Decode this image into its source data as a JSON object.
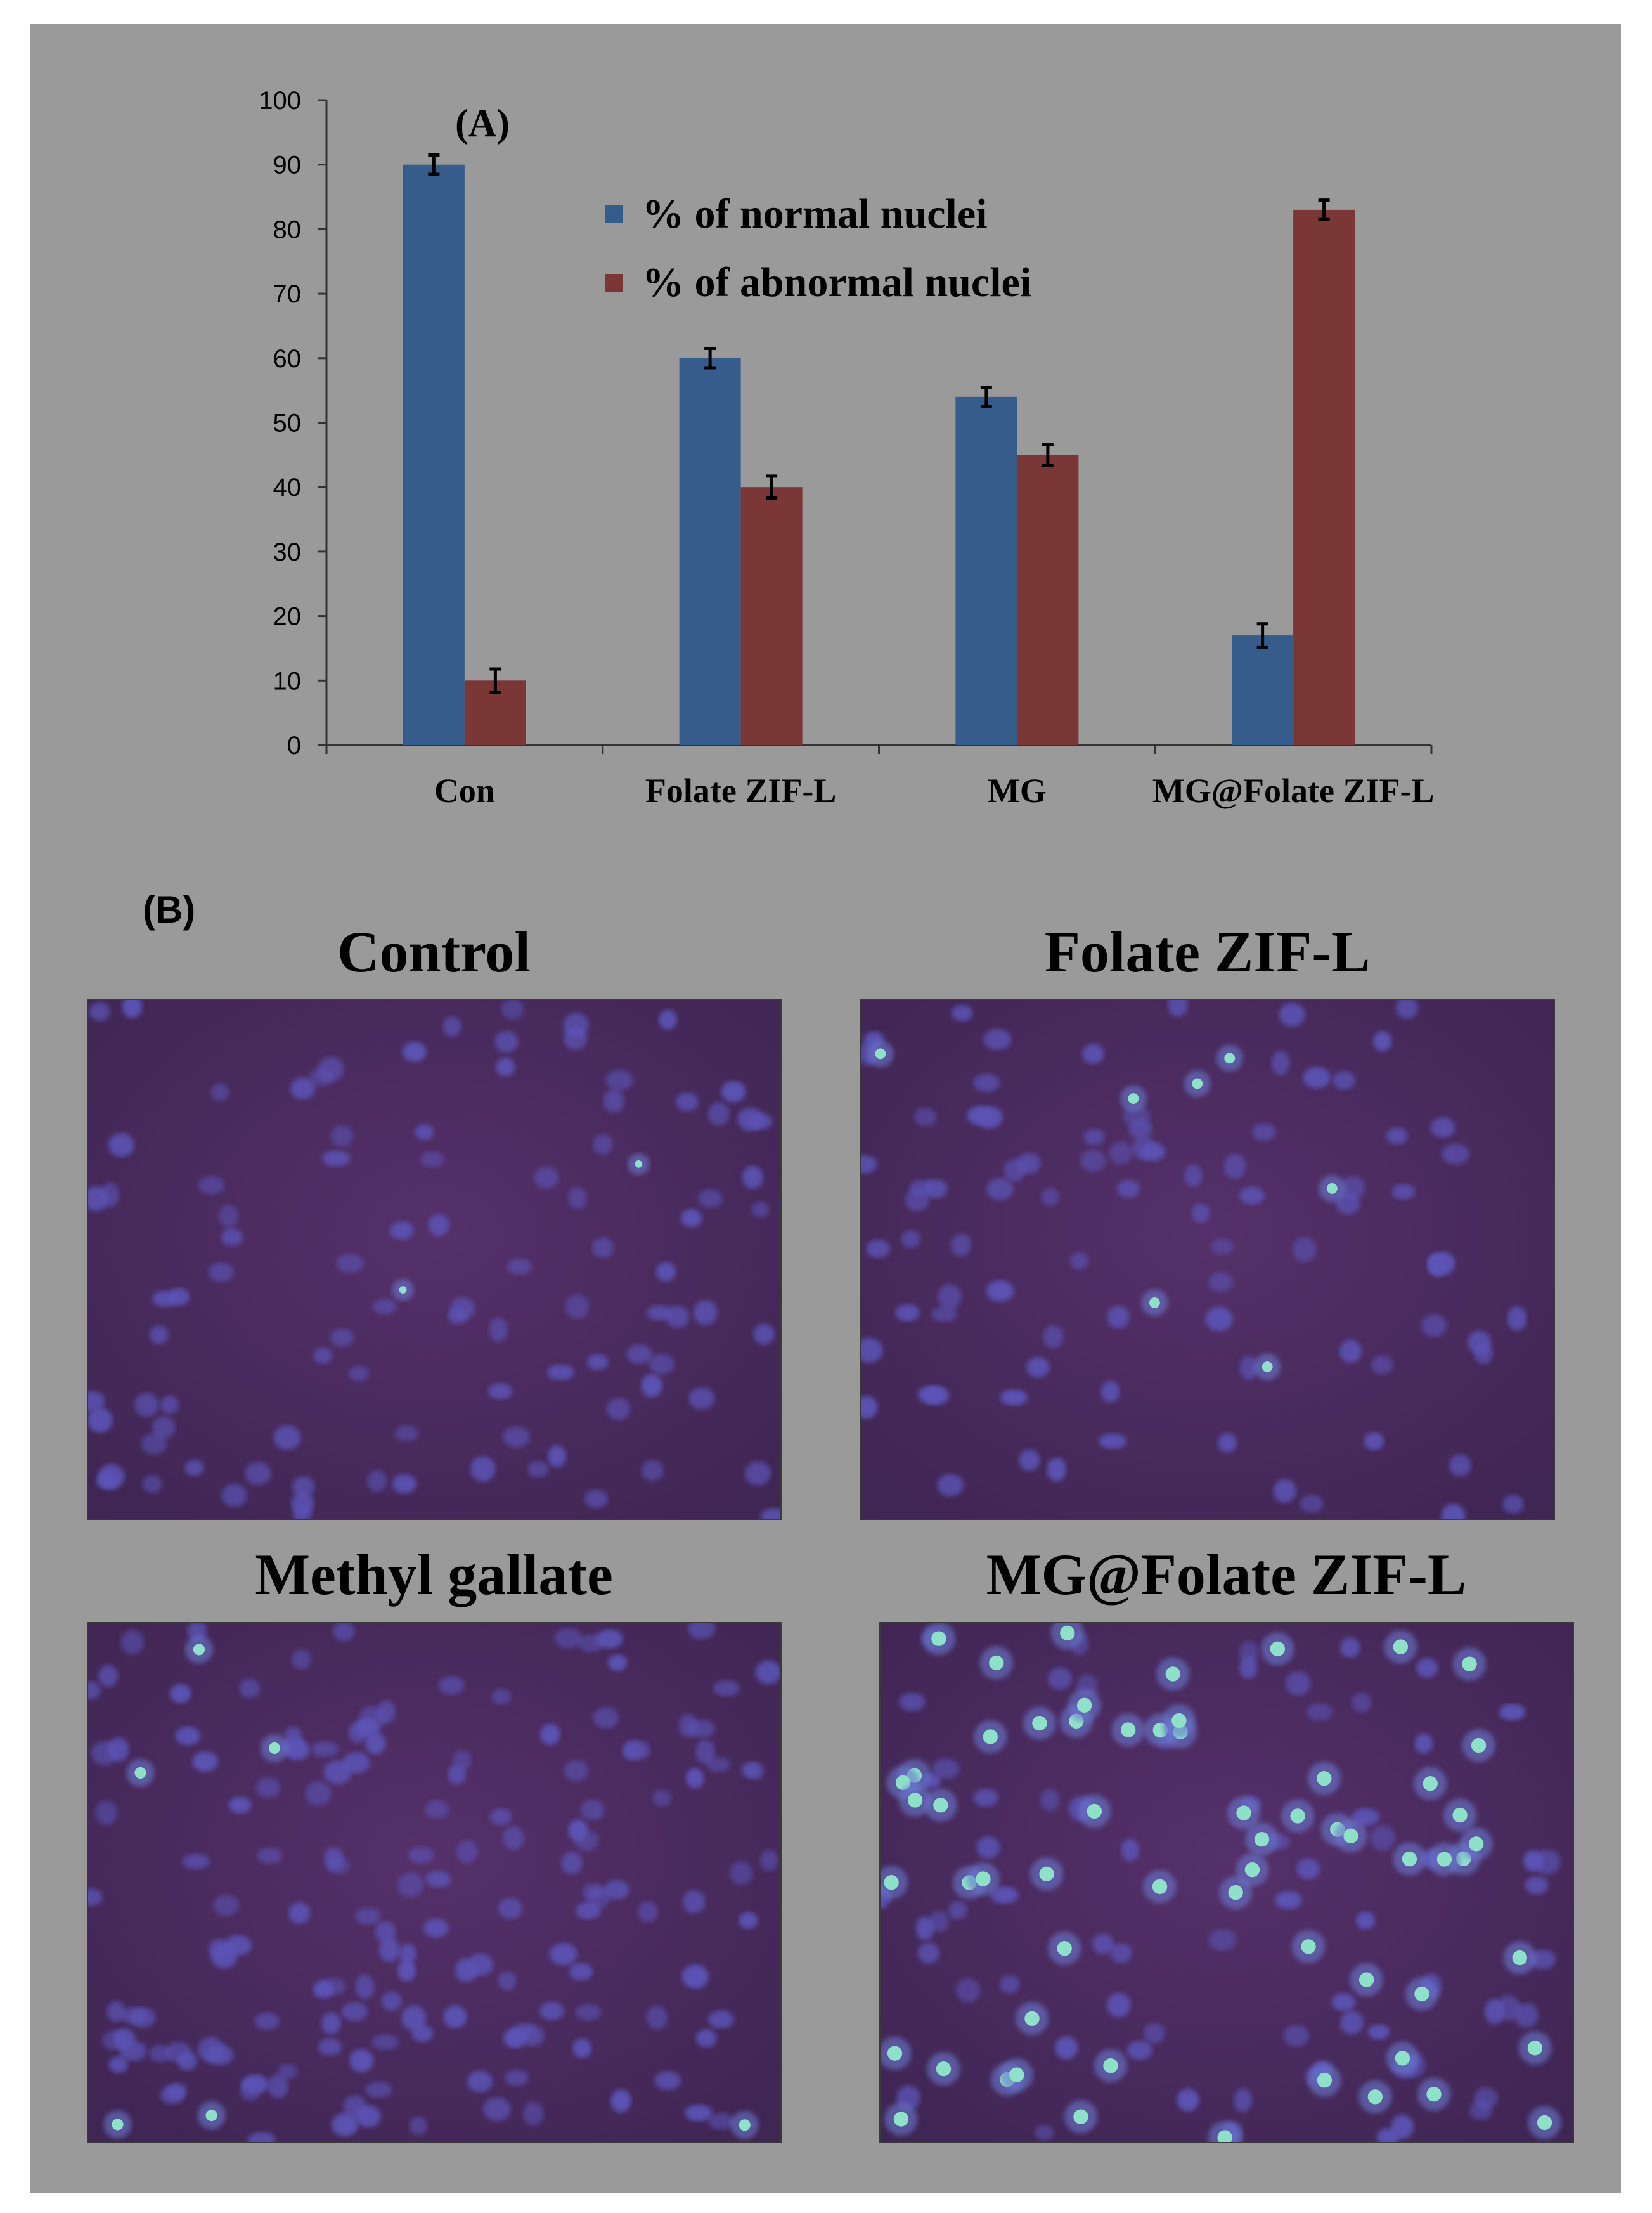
{
  "panel_labels": {
    "a": "(A)",
    "b": "(B)"
  },
  "chart_data": {
    "type": "bar",
    "categories": [
      "Con",
      "Folate ZIF-L",
      "MG",
      "MG@Folate ZIF-L"
    ],
    "series": [
      {
        "name": "% of normal nuclei",
        "values": [
          90,
          60,
          54,
          17
        ],
        "errors": [
          1.5,
          1.5,
          1.5,
          1.8
        ],
        "color": "#365c8c"
      },
      {
        "name": "% of abnormal nuclei",
        "values": [
          10,
          40,
          45,
          83
        ],
        "errors": [
          1.8,
          1.7,
          1.6,
          1.5
        ],
        "color": "#7b3636"
      }
    ],
    "ylim": [
      0,
      100
    ],
    "yticks": [
      0,
      10,
      20,
      30,
      40,
      50,
      60,
      70,
      80,
      90,
      100
    ],
    "legend": "top-center",
    "grid": false
  },
  "images": [
    {
      "title": "Control"
    },
    {
      "title": "Folate ZIF-L"
    },
    {
      "title": "Methyl gallate"
    },
    {
      "title": "MG@Folate ZIF-L"
    }
  ],
  "colors": {
    "panel_bg": "#9a9a9a",
    "micro_bg": "#4a2a5c",
    "nucleus": "#5c55b8",
    "bright_nucleus": "#8fe0c8"
  }
}
